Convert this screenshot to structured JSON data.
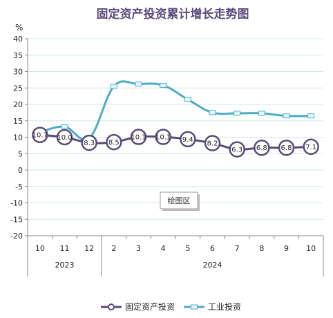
{
  "chart_data": {
    "type": "line",
    "title": "固定资产投资累计增长走势图",
    "ylabel": "%",
    "ylim": [
      -20,
      40
    ],
    "yticks": [
      -20,
      -15,
      -10,
      -5,
      0,
      5,
      10,
      15,
      20,
      25,
      30,
      35,
      40
    ],
    "categories": [
      "10",
      "11",
      "12",
      "2",
      "3",
      "4",
      "5",
      "6",
      "7",
      "8",
      "9",
      "10"
    ],
    "year_groups": [
      {
        "label": "2023",
        "span": 3
      },
      {
        "label": "2024",
        "span": 9
      }
    ],
    "grid": true,
    "legend_position": "bottom",
    "plot_area_label": "绘图区",
    "series": [
      {
        "name": "固定资产投资",
        "color": "#5a4a7a",
        "values": [
          10.7,
          10.0,
          8.3,
          8.5,
          10.1,
          10.1,
          9.4,
          8.2,
          6.3,
          6.8,
          6.8,
          7.1
        ],
        "labels": [
          "10.7",
          "10.0",
          "8.3",
          "8.5",
          "10.1",
          "10.1",
          "9.4",
          "8.2",
          "6.3",
          "6.8",
          "6.8",
          "7.1"
        ]
      },
      {
        "name": "工业投资",
        "color": "#4bacc6",
        "values": [
          11.5,
          13.2,
          9.7,
          25.5,
          26.2,
          25.8,
          21.5,
          17.5,
          17.3,
          17.3,
          16.5,
          16.5
        ]
      }
    ]
  }
}
